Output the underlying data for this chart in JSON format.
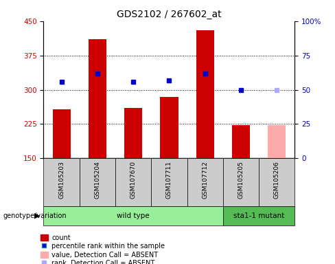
{
  "title": "GDS2102 / 267602_at",
  "samples": [
    "GSM105203",
    "GSM105204",
    "GSM107670",
    "GSM107711",
    "GSM107712",
    "GSM105205",
    "GSM105206"
  ],
  "count_values": [
    258,
    410,
    260,
    285,
    430,
    222,
    222
  ],
  "percentile_values": [
    56,
    62,
    56,
    57,
    62,
    50,
    50
  ],
  "absent_flags": [
    false,
    false,
    false,
    false,
    false,
    false,
    true
  ],
  "genotype_groups": [
    {
      "label": "wild type",
      "start": 0,
      "end": 5
    },
    {
      "label": "sta1-1 mutant",
      "start": 5,
      "end": 7
    }
  ],
  "ylim_left": [
    150,
    450
  ],
  "ylim_right": [
    0,
    100
  ],
  "left_ticks": [
    150,
    225,
    300,
    375,
    450
  ],
  "right_ticks": [
    0,
    25,
    50,
    75,
    100
  ],
  "bar_color_present": "#cc0000",
  "bar_color_absent": "#ffaaaa",
  "dot_color_present": "#0000cc",
  "dot_color_absent": "#aaaaff",
  "sample_bg_color": "#cccccc",
  "wildtype_bg_color": "#99ee99",
  "mutant_bg_color": "#55bb55",
  "bar_width": 0.5
}
